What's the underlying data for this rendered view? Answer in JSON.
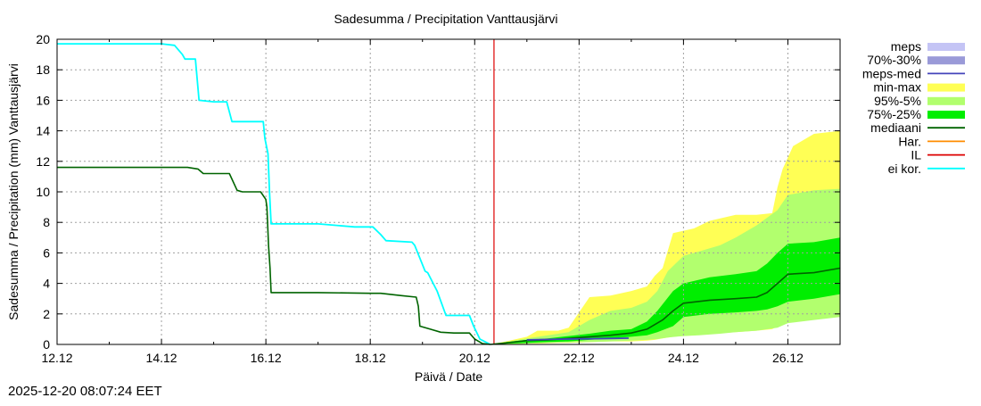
{
  "chart_data": {
    "type": "area",
    "title": "Sadesumma / Precipitation  Vanttausjärvi",
    "xlabel": "Päivä / Date",
    "ylabel": "Sadesumma / Precipitation (mm)  Vanttausjärvi",
    "x_unit": "days since 12.12 00:00",
    "xlim": [
      0,
      15
    ],
    "ylim": [
      0,
      20
    ],
    "x_ticks": [
      {
        "v": 0,
        "label": "12.12"
      },
      {
        "v": 2,
        "label": "14.12"
      },
      {
        "v": 4,
        "label": "16.12"
      },
      {
        "v": 6,
        "label": "18.12"
      },
      {
        "v": 8,
        "label": "20.12"
      },
      {
        "v": 10,
        "label": "22.12"
      },
      {
        "v": 12,
        "label": "24.12"
      },
      {
        "v": 14,
        "label": "26.12"
      }
    ],
    "y_ticks": [
      0,
      2,
      4,
      6,
      8,
      10,
      12,
      14,
      16,
      18,
      20
    ],
    "grid": true,
    "legend_position": "outside-right",
    "legend": [
      {
        "label": "meps",
        "color": "#c4c4f5",
        "kind": "band"
      },
      {
        "label": "70%-30%",
        "color": "#9a9ad8",
        "kind": "band"
      },
      {
        "label": "meps-med",
        "color": "#4444bb",
        "kind": "line"
      },
      {
        "label": "min-max",
        "color": "#ffff55",
        "kind": "band"
      },
      {
        "label": "95%-5%",
        "color": "#b2ff6e",
        "kind": "band"
      },
      {
        "label": "75%-25%",
        "color": "#00ee00",
        "kind": "band"
      },
      {
        "label": "mediaani",
        "color": "#006400",
        "kind": "line"
      },
      {
        "label": "Har.",
        "color": "#ff8c00",
        "kind": "line"
      },
      {
        "label": "IL",
        "color": "#dd0000",
        "kind": "line"
      },
      {
        "label": "ei kor.",
        "color": "#00ffff",
        "kind": "line"
      }
    ],
    "il_x": 8.37,
    "bands": {
      "min_max": {
        "x": [
          8.3,
          8.45,
          8.6,
          9.0,
          9.2,
          9.6,
          9.8,
          10.2,
          10.6,
          11.0,
          11.3,
          11.45,
          11.6,
          11.8,
          12.2,
          12.5,
          13.0,
          13.4,
          13.7,
          13.8,
          13.9,
          14.1,
          14.5,
          15.0
        ],
        "low": [
          0.0,
          0.0,
          0.02,
          0.05,
          0.05,
          0.1,
          0.1,
          0.15,
          0.2,
          0.2,
          0.25,
          0.3,
          0.4,
          0.5,
          0.6,
          0.7,
          0.8,
          0.9,
          1.0,
          1.2,
          1.4,
          1.5,
          1.7,
          1.9
        ],
        "high": [
          0.0,
          0.1,
          0.2,
          0.5,
          0.9,
          0.9,
          1.1,
          3.1,
          3.2,
          3.5,
          3.8,
          4.5,
          5.0,
          7.3,
          7.6,
          8.1,
          8.5,
          8.5,
          8.6,
          10.3,
          11.5,
          13.0,
          13.8,
          14.0
        ]
      },
      "p95_5": {
        "x": [
          8.3,
          8.45,
          8.6,
          9.0,
          9.4,
          9.8,
          10.2,
          10.6,
          11.0,
          11.3,
          11.5,
          11.7,
          12.0,
          12.3,
          12.7,
          13.0,
          13.4,
          13.8,
          14.0,
          14.5,
          15.0
        ],
        "low": [
          0.0,
          0.0,
          0.02,
          0.05,
          0.1,
          0.12,
          0.15,
          0.2,
          0.25,
          0.3,
          0.35,
          0.45,
          0.55,
          0.6,
          0.7,
          0.8,
          0.9,
          1.1,
          1.4,
          1.6,
          1.8
        ],
        "high": [
          0.0,
          0.05,
          0.15,
          0.4,
          0.6,
          0.8,
          1.6,
          2.2,
          2.4,
          2.8,
          3.5,
          4.8,
          5.8,
          6.1,
          6.5,
          7.0,
          7.8,
          8.8,
          9.8,
          10.1,
          10.2
        ]
      },
      "p75_25": {
        "x": [
          8.3,
          8.45,
          8.6,
          9.0,
          9.4,
          9.8,
          10.2,
          10.6,
          11.0,
          11.3,
          11.5,
          11.8,
          12.0,
          12.5,
          13.0,
          13.4,
          13.6,
          13.8,
          14.0,
          14.5,
          15.0
        ],
        "low": [
          0.0,
          0.0,
          0.05,
          0.1,
          0.15,
          0.2,
          0.3,
          0.4,
          0.5,
          0.6,
          0.8,
          1.2,
          1.8,
          2.0,
          2.1,
          2.2,
          2.3,
          2.5,
          2.8,
          3.0,
          3.3
        ],
        "high": [
          0.0,
          0.05,
          0.15,
          0.3,
          0.4,
          0.55,
          0.7,
          0.9,
          1.0,
          1.5,
          2.2,
          3.5,
          4.0,
          4.4,
          4.6,
          4.8,
          5.3,
          6.0,
          6.6,
          6.7,
          7.0
        ]
      },
      "meps": {
        "x": [
          9.0,
          9.4,
          9.8,
          10.2,
          10.6,
          10.95
        ],
        "low": [
          0.28,
          0.3,
          0.32,
          0.34,
          0.36,
          0.38
        ],
        "high": [
          0.33,
          0.36,
          0.38,
          0.4,
          0.42,
          0.44
        ]
      }
    },
    "series": [
      {
        "name": "ei kor.",
        "color": "#00ffff",
        "x": [
          0.0,
          2.0,
          2.25,
          2.4,
          2.45,
          2.65,
          2.72,
          3.0,
          3.25,
          3.35,
          3.95,
          3.98,
          4.04,
          4.07,
          4.1,
          5.0,
          5.7,
          6.05,
          6.2,
          6.3,
          6.8,
          6.85,
          7.05,
          7.1,
          7.28,
          7.45,
          7.9,
          7.98,
          8.1,
          8.3
        ],
        "y": [
          19.7,
          19.7,
          19.6,
          19.0,
          18.7,
          18.7,
          16.0,
          15.9,
          15.9,
          14.6,
          14.6,
          13.5,
          12.5,
          10.0,
          7.9,
          7.9,
          7.7,
          7.7,
          7.2,
          6.8,
          6.7,
          6.5,
          4.8,
          4.7,
          3.5,
          1.9,
          1.9,
          1.2,
          0.35,
          0.0
        ]
      },
      {
        "name": "mediaani",
        "color": "#006400",
        "x": [
          0.0,
          2.5,
          2.7,
          2.8,
          3.3,
          3.45,
          3.55,
          3.9,
          4.0,
          4.02,
          4.05,
          4.08,
          4.1,
          5.0,
          6.0,
          6.2,
          6.6,
          6.88,
          6.92,
          6.95,
          7.15,
          7.35,
          7.6,
          7.9,
          8.0,
          8.15,
          8.3
        ],
        "y": [
          11.6,
          11.6,
          11.5,
          11.2,
          11.2,
          10.1,
          10.0,
          10.0,
          9.5,
          9.0,
          6.5,
          5.0,
          3.4,
          3.4,
          3.35,
          3.35,
          3.2,
          3.1,
          2.5,
          1.2,
          1.0,
          0.8,
          0.75,
          0.75,
          0.35,
          0.05,
          0.0
        ]
      },
      {
        "name": "mediaani",
        "color": "#006400",
        "x": [
          8.3,
          8.6,
          9.0,
          9.4,
          9.8,
          10.2,
          10.6,
          11.0,
          11.3,
          11.6,
          11.8,
          12.0,
          12.5,
          13.0,
          13.4,
          13.6,
          13.8,
          14.0,
          14.5,
          15.0
        ],
        "y": [
          0.0,
          0.1,
          0.25,
          0.3,
          0.4,
          0.5,
          0.6,
          0.75,
          1.0,
          1.6,
          2.2,
          2.7,
          2.9,
          3.0,
          3.1,
          3.4,
          4.0,
          4.6,
          4.7,
          5.0
        ]
      },
      {
        "name": "meps-med",
        "color": "#4444bb",
        "x": [
          9.0,
          9.4,
          9.8,
          10.2,
          10.6,
          10.95
        ],
        "y": [
          0.3,
          0.33,
          0.35,
          0.37,
          0.39,
          0.41
        ]
      }
    ]
  },
  "timestamp": "2025-12-20 08:07:24 EET"
}
